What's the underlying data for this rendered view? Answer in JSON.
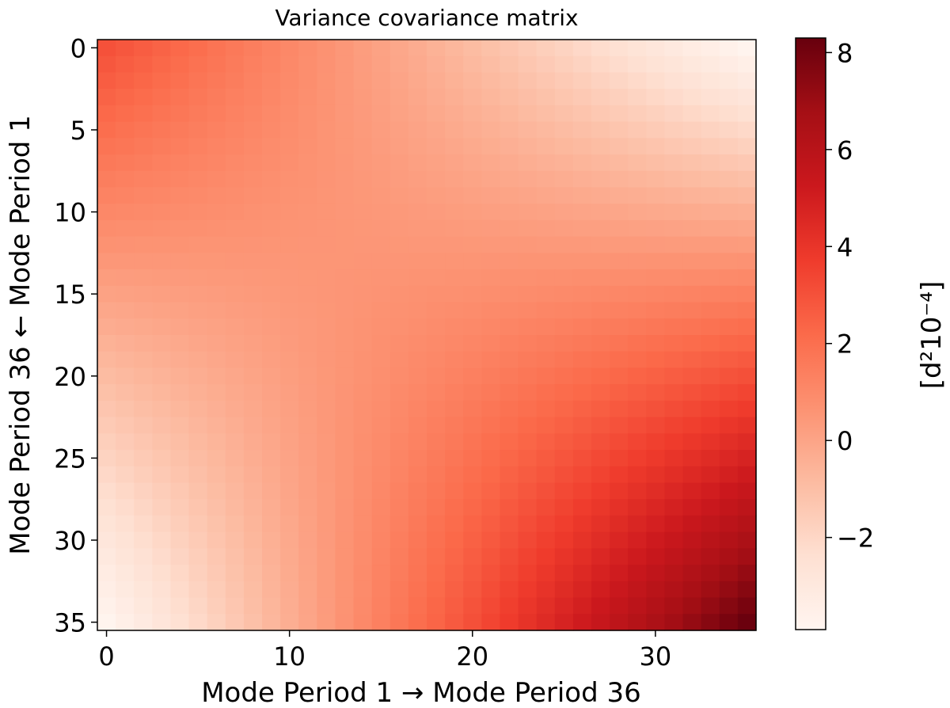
{
  "chart_data": {
    "type": "heatmap",
    "title": "Variance covariance matrix",
    "xlabel": "Mode Period 1 → Mode Period 36",
    "ylabel": "Mode Period 36 ← Mode Period 1",
    "colorbar_label": "[d²10⁻⁴]",
    "colormap": "Reds",
    "n": 36,
    "xlim": [
      -0.5,
      35.5
    ],
    "ylim": [
      35.5,
      -0.5
    ],
    "x_ticks": [
      0,
      10,
      20,
      30
    ],
    "y_ticks": [
      0,
      5,
      10,
      15,
      20,
      25,
      30,
      35
    ],
    "colorbar_range": [
      -3.9,
      8.3
    ],
    "colorbar_ticks": [
      -2,
      0,
      2,
      4,
      6,
      8
    ],
    "colorbar_tick_labels": [
      "−2",
      "0",
      "2",
      "4",
      "6",
      "8"
    ],
    "model": {
      "description": "approximate matrix values, C[i][j] = corner + (end - corner) * (i/35 * j/35)",
      "c00": 3.0,
      "c0_end": -3.8,
      "c_end_end": 8.2
    },
    "colors": {
      "cmap_stops": [
        "#fff5f0",
        "#fee0d2",
        "#fcbba1",
        "#fc9272",
        "#fb6a4a",
        "#ef3b2c",
        "#cb181d",
        "#a50f15",
        "#67000d"
      ]
    }
  }
}
